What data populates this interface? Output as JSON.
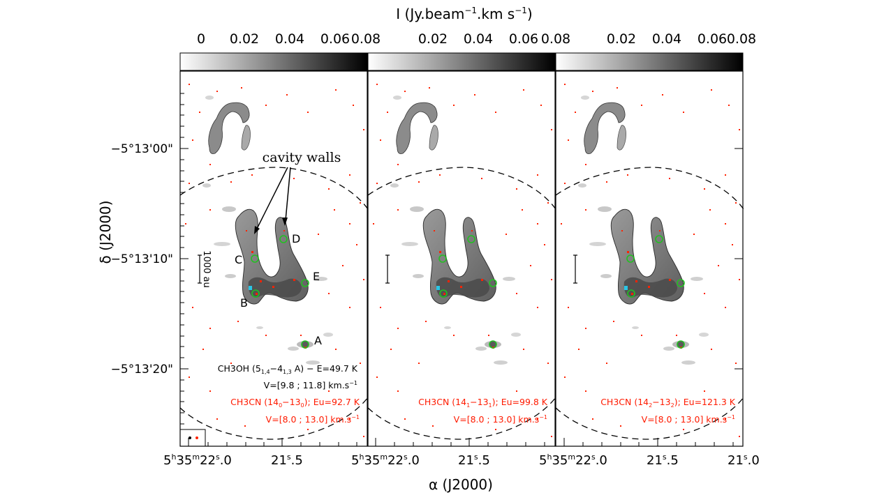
{
  "figure": {
    "colorbar": {
      "title_main": "I (Jy.beam",
      "title_exp1": "−1",
      "title_mid": ".km s",
      "title_exp2": "−1",
      "title_close": ")",
      "ticks": [
        "0",
        "0.02",
        "0.04",
        "0.06",
        "0.08"
      ],
      "range": [
        0,
        0.08
      ]
    },
    "axes": {
      "ylabel": "δ (J2000)",
      "xlabel": "α (J2000)",
      "y_ticks": [
        "−5°13'00\"",
        "−5°13'10\"",
        "−5°13'20\""
      ],
      "x_ticks": {
        "p1": "5h35m22.0",
        "p2": "21s.5",
        "p3": "5h35m22.0",
        "p4": "21s.5",
        "p5": "5h35m22.0",
        "p6": "21s.5",
        "p7": "21s.0"
      }
    },
    "annotations": {
      "cavity_walls": "cavity walls",
      "sources": [
        "A",
        "B",
        "C",
        "D",
        "E"
      ],
      "scale_bar": "1000 au"
    },
    "panels": [
      {
        "line1_species": "CH3OH (5",
        "line1_rest": "1,4",
        "line1_mid": "−4",
        "line1_rest2": "1,3",
        "line1_tail": " A) − E",
        "line1_eu": "=49.7 K",
        "line2": "V=[9.8 ; 11.8] km.s",
        "line2_exp": "−1",
        "line3_species": "CH3CN (14",
        "line3_k": "0",
        "line3_mid": "−13",
        "line3_k2": "0",
        "line3_eu": "); Eu=92.7 K",
        "line4": "V=[8.0 ; 13.0] km.s",
        "line4_exp": "−1"
      },
      {
        "line3_species": "CH3CN (14",
        "line3_k": "1",
        "line3_mid": "−13",
        "line3_k2": "1",
        "line3_eu": "); Eu=99.8 K",
        "line4": "V=[8.0 ; 13.0] km.s",
        "line4_exp": "−1"
      },
      {
        "line3_species": "CH3CN (14",
        "line3_k": "2",
        "line3_mid": "−13",
        "line3_k2": "2",
        "line3_eu": "); Eu=121.3 K",
        "line4": "V=[8.0 ; 13.0] km.s",
        "line4_exp": "−1"
      }
    ],
    "colors": {
      "ch3oh_text": "#000000",
      "ch3cn_text": "#ff1a00",
      "circle": "#22c022",
      "marker": "#29c6e6",
      "emission_dark": "#5a5a5a",
      "emission_light": "#cfcfcf"
    }
  }
}
